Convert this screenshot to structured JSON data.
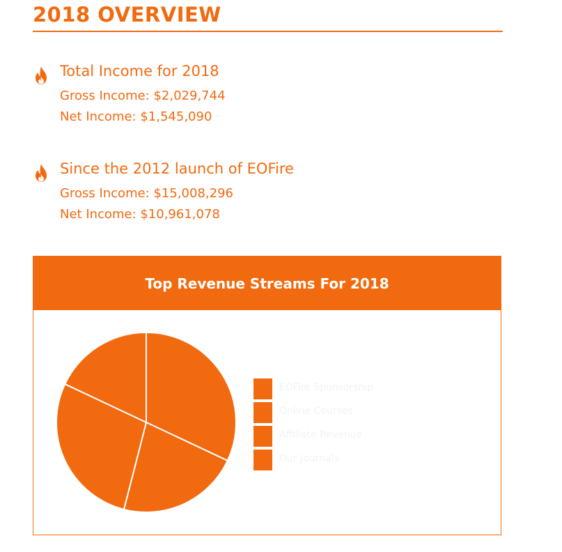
{
  "page": {
    "title": "2018 OVERVIEW"
  },
  "colors": {
    "accent": "#f26a10",
    "header_text": "#ffffff",
    "legend_text": "#f2f2f2"
  },
  "sections": [
    {
      "icon": "flame-icon",
      "heading": "Total Income for 2018",
      "gross": "Gross Income: $2,029,744",
      "net": "Net Income: $1,545,090"
    },
    {
      "icon": "flame-icon",
      "heading": "Since the 2012 launch of EOFire",
      "gross": "Gross Income: $15,008,296",
      "net": "Net Income: $10,961,078"
    }
  ],
  "chart_data": {
    "type": "pie",
    "title": "Top Revenue Streams For 2018",
    "legend_position": "right",
    "categories": [
      "EOFire Sponsorship",
      "Online Courses",
      "Affiliate Revenue",
      "Our Journals"
    ],
    "values": [
      32,
      22,
      28,
      18
    ],
    "color": "#f26a10"
  }
}
